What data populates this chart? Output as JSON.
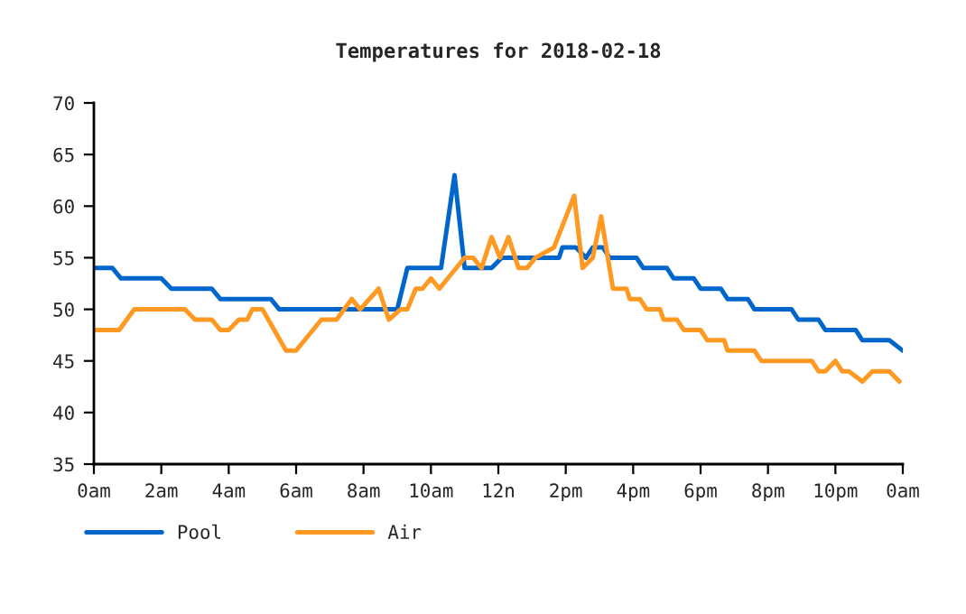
{
  "chart_data": {
    "type": "line",
    "title": "Temperatures for 2018-02-18",
    "series": [
      {
        "name": "Pool",
        "color": "#0066cc",
        "x": [
          "2018-02-18T00:00",
          "2018-02-18T00:33",
          "2018-02-18T00:48",
          "2018-02-18T02:00",
          "2018-02-18T02:18",
          "2018-02-18T03:30",
          "2018-02-18T03:45",
          "2018-02-18T05:15",
          "2018-02-18T05:30",
          "2018-02-18T09:00",
          "2018-02-18T09:18",
          "2018-02-18T10:18",
          "2018-02-18T10:42",
          "2018-02-18T11:00",
          "2018-02-18T11:48",
          "2018-02-18T12:06",
          "2018-02-18T13:48",
          "2018-02-18T13:54",
          "2018-02-18T14:18",
          "2018-02-18T14:36",
          "2018-02-18T14:48",
          "2018-02-18T15:06",
          "2018-02-18T15:18",
          "2018-02-18T16:06",
          "2018-02-18T16:18",
          "2018-02-18T17:00",
          "2018-02-18T17:12",
          "2018-02-18T17:48",
          "2018-02-18T18:00",
          "2018-02-18T18:36",
          "2018-02-18T18:48",
          "2018-02-18T19:24",
          "2018-02-18T19:36",
          "2018-02-18T20:42",
          "2018-02-18T20:54",
          "2018-02-18T21:30",
          "2018-02-18T21:42",
          "2018-02-18T22:36",
          "2018-02-18T22:48",
          "2018-02-18T23:36",
          "2018-02-19T00:00"
        ],
        "values": [
          54,
          54,
          53,
          53,
          52,
          52,
          51,
          51,
          50,
          50,
          54,
          54,
          63,
          54,
          54,
          55,
          55,
          56,
          56,
          55,
          56,
          56,
          55,
          55,
          54,
          54,
          53,
          53,
          52,
          52,
          51,
          51,
          50,
          50,
          49,
          49,
          48,
          48,
          47,
          47,
          46
        ]
      },
      {
        "name": "Air",
        "color": "#ff9922",
        "x": [
          "2018-02-18T00:00",
          "2018-02-18T00:45",
          "2018-02-18T01:12",
          "2018-02-18T02:42",
          "2018-02-18T03:00",
          "2018-02-18T03:30",
          "2018-02-18T03:45",
          "2018-02-18T04:00",
          "2018-02-18T04:18",
          "2018-02-18T04:33",
          "2018-02-18T04:42",
          "2018-02-18T05:00",
          "2018-02-18T05:42",
          "2018-02-18T06:00",
          "2018-02-18T06:45",
          "2018-02-18T07:12",
          "2018-02-18T07:39",
          "2018-02-18T07:54",
          "2018-02-18T08:27",
          "2018-02-18T08:45",
          "2018-02-18T09:06",
          "2018-02-18T09:18",
          "2018-02-18T09:33",
          "2018-02-18T09:45",
          "2018-02-18T10:00",
          "2018-02-18T10:15",
          "2018-02-18T11:00",
          "2018-02-18T11:15",
          "2018-02-18T11:30",
          "2018-02-18T11:48",
          "2018-02-18T12:03",
          "2018-02-18T12:18",
          "2018-02-18T12:36",
          "2018-02-18T12:51",
          "2018-02-18T13:06",
          "2018-02-18T13:39",
          "2018-02-18T14:15",
          "2018-02-18T14:30",
          "2018-02-18T14:48",
          "2018-02-18T15:03",
          "2018-02-18T15:15",
          "2018-02-18T15:24",
          "2018-02-18T15:48",
          "2018-02-18T15:54",
          "2018-02-18T16:12",
          "2018-02-18T16:24",
          "2018-02-18T16:48",
          "2018-02-18T16:54",
          "2018-02-18T17:18",
          "2018-02-18T17:30",
          "2018-02-18T18:00",
          "2018-02-18T18:12",
          "2018-02-18T18:42",
          "2018-02-18T18:48",
          "2018-02-18T19:36",
          "2018-02-18T19:48",
          "2018-02-18T21:18",
          "2018-02-18T21:30",
          "2018-02-18T21:42",
          "2018-02-18T22:00",
          "2018-02-18T22:12",
          "2018-02-18T22:24",
          "2018-02-18T22:48",
          "2018-02-18T23:06",
          "2018-02-18T23:36",
          "2018-02-18T23:54"
        ],
        "values": [
          48,
          48,
          50,
          50,
          49,
          49,
          48,
          48,
          49,
          49,
          50,
          50,
          46,
          46,
          49,
          49,
          51,
          50,
          52,
          49,
          50,
          50,
          52,
          52,
          53,
          52,
          55,
          55,
          54,
          57,
          55,
          57,
          54,
          54,
          55,
          56,
          61,
          54,
          55,
          59,
          55,
          52,
          52,
          51,
          51,
          50,
          50,
          49,
          49,
          48,
          48,
          47,
          47,
          46,
          46,
          45,
          45,
          44,
          44,
          45,
          44,
          44,
          43,
          44,
          44,
          43
        ]
      }
    ],
    "xlim": [
      "2018-02-18T00:00",
      "2018-02-19T00:00"
    ],
    "xticks": [
      {
        "value": "2018-02-18T00:00",
        "label": "0am"
      },
      {
        "value": "2018-02-18T02:00",
        "label": "2am"
      },
      {
        "value": "2018-02-18T04:00",
        "label": "4am"
      },
      {
        "value": "2018-02-18T06:00",
        "label": "6am"
      },
      {
        "value": "2018-02-18T08:00",
        "label": "8am"
      },
      {
        "value": "2018-02-18T10:00",
        "label": "10am"
      },
      {
        "value": "2018-02-18T12:00",
        "label": "12n"
      },
      {
        "value": "2018-02-18T14:00",
        "label": "2pm"
      },
      {
        "value": "2018-02-18T16:00",
        "label": "4pm"
      },
      {
        "value": "2018-02-18T18:00",
        "label": "6pm"
      },
      {
        "value": "2018-02-18T20:00",
        "label": "8pm"
      },
      {
        "value": "2018-02-18T22:00",
        "label": "10pm"
      },
      {
        "value": "2018-02-19T00:00",
        "label": "0am"
      }
    ],
    "ylim": [
      35,
      70
    ],
    "yticks": [
      35,
      40,
      45,
      50,
      55,
      60,
      65,
      70
    ],
    "grid": false,
    "legend": "bottom left",
    "marker": "none",
    "line_style": "solid"
  }
}
